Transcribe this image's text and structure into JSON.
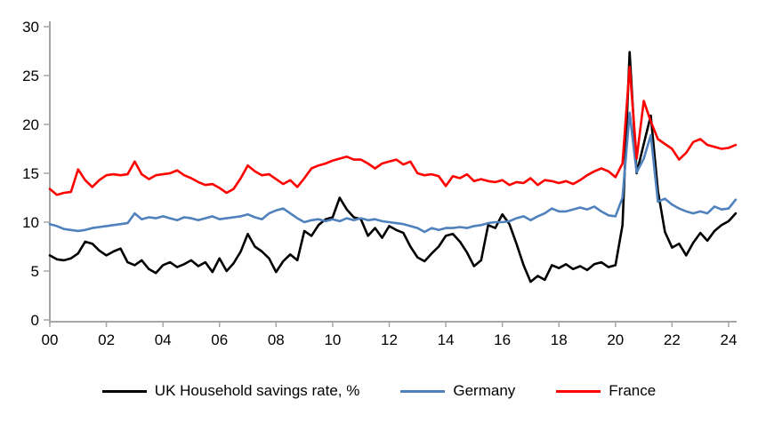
{
  "chart_data": {
    "type": "line",
    "title": "",
    "xlabel": "",
    "ylabel": "",
    "grid": false,
    "legend_position": "bottom",
    "axis_color": "#a6a6a6",
    "ylim": [
      0,
      30
    ],
    "ytick_labels": [
      "0",
      "5",
      "10",
      "15",
      "20",
      "25",
      "30"
    ],
    "ytick_values": [
      0,
      5,
      10,
      15,
      20,
      25,
      30
    ],
    "xtick_labels": [
      "00",
      "02",
      "04",
      "06",
      "08",
      "10",
      "12",
      "14",
      "16",
      "18",
      "20",
      "22",
      "24"
    ],
    "xtick_values": [
      2000,
      2002,
      2004,
      2006,
      2008,
      2010,
      2012,
      2014,
      2016,
      2018,
      2020,
      2022,
      2024
    ],
    "x_start": 2000.0,
    "x_step": 0.25,
    "series": [
      {
        "name": "UK Household savings rate, %",
        "color": "#000000",
        "values": [
          6.6,
          6.2,
          6.1,
          6.3,
          6.8,
          8.0,
          7.8,
          7.1,
          6.6,
          7.0,
          7.3,
          5.9,
          5.6,
          6.1,
          5.2,
          4.8,
          5.6,
          5.9,
          5.4,
          5.7,
          6.1,
          5.5,
          5.9,
          4.9,
          6.3,
          5.0,
          5.8,
          7.0,
          8.8,
          7.5,
          7.0,
          6.3,
          4.9,
          6.0,
          6.7,
          6.1,
          9.1,
          8.6,
          9.7,
          10.3,
          10.5,
          12.5,
          11.3,
          10.5,
          10.3,
          8.6,
          9.4,
          8.4,
          9.6,
          9.2,
          8.9,
          7.5,
          6.4,
          6.0,
          6.8,
          7.5,
          8.6,
          8.8,
          8.0,
          6.9,
          5.5,
          6.1,
          9.7,
          9.4,
          10.8,
          9.8,
          7.8,
          5.6,
          3.9,
          4.5,
          4.1,
          5.6,
          5.3,
          5.7,
          5.2,
          5.5,
          5.1,
          5.7,
          5.9,
          5.4,
          5.6,
          9.7,
          27.4,
          15.0,
          18.0,
          20.9,
          13.2,
          9.0,
          7.4,
          7.8,
          6.6,
          7.9,
          8.9,
          8.1,
          9.1,
          9.7,
          10.1,
          10.9
        ]
      },
      {
        "name": "Germany",
        "color": "#4f81bd",
        "values": [
          9.8,
          9.6,
          9.3,
          9.2,
          9.1,
          9.2,
          9.4,
          9.5,
          9.6,
          9.7,
          9.8,
          9.9,
          10.9,
          10.3,
          10.5,
          10.4,
          10.6,
          10.4,
          10.2,
          10.5,
          10.4,
          10.2,
          10.4,
          10.6,
          10.3,
          10.4,
          10.5,
          10.6,
          10.8,
          10.5,
          10.3,
          10.9,
          11.2,
          11.4,
          10.9,
          10.4,
          10.0,
          10.2,
          10.3,
          10.1,
          10.3,
          10.1,
          10.4,
          10.2,
          10.4,
          10.2,
          10.3,
          10.1,
          10.0,
          9.9,
          9.8,
          9.6,
          9.4,
          9.0,
          9.4,
          9.2,
          9.4,
          9.4,
          9.5,
          9.4,
          9.6,
          9.7,
          9.9,
          10.0,
          10.0,
          10.1,
          10.4,
          10.6,
          10.2,
          10.6,
          10.9,
          11.4,
          11.1,
          11.1,
          11.3,
          11.5,
          11.3,
          11.6,
          11.1,
          10.7,
          10.6,
          12.5,
          21.2,
          15.1,
          16.5,
          18.9,
          12.1,
          12.4,
          11.8,
          11.4,
          11.1,
          10.9,
          11.1,
          10.9,
          11.6,
          11.3,
          11.4,
          12.3
        ]
      },
      {
        "name": "France",
        "color": "#ff0000",
        "values": [
          13.4,
          12.8,
          13.0,
          13.1,
          15.4,
          14.3,
          13.6,
          14.3,
          14.8,
          14.9,
          14.8,
          14.9,
          16.2,
          14.9,
          14.4,
          14.8,
          14.9,
          15.0,
          15.3,
          14.8,
          14.5,
          14.1,
          13.8,
          13.9,
          13.5,
          13.0,
          13.4,
          14.5,
          15.8,
          15.2,
          14.8,
          14.9,
          14.4,
          13.9,
          14.3,
          13.6,
          14.5,
          15.5,
          15.8,
          16.0,
          16.3,
          16.5,
          16.7,
          16.4,
          16.4,
          16.0,
          15.5,
          16.0,
          16.2,
          16.4,
          15.9,
          16.2,
          15.0,
          14.8,
          14.9,
          14.7,
          13.7,
          14.7,
          14.5,
          14.9,
          14.2,
          14.4,
          14.2,
          14.1,
          14.3,
          13.8,
          14.1,
          14.0,
          14.5,
          13.8,
          14.3,
          14.2,
          14.0,
          14.2,
          13.9,
          14.3,
          14.8,
          15.2,
          15.5,
          15.2,
          14.6,
          16.0,
          25.9,
          16.5,
          22.4,
          20.3,
          18.5,
          18.0,
          17.5,
          16.4,
          17.1,
          18.2,
          18.5,
          17.9,
          17.7,
          17.5,
          17.6,
          17.9
        ]
      }
    ]
  },
  "legend": {
    "items": [
      {
        "label": "UK Household savings rate, %"
      },
      {
        "label": "Germany"
      },
      {
        "label": "France"
      }
    ]
  }
}
